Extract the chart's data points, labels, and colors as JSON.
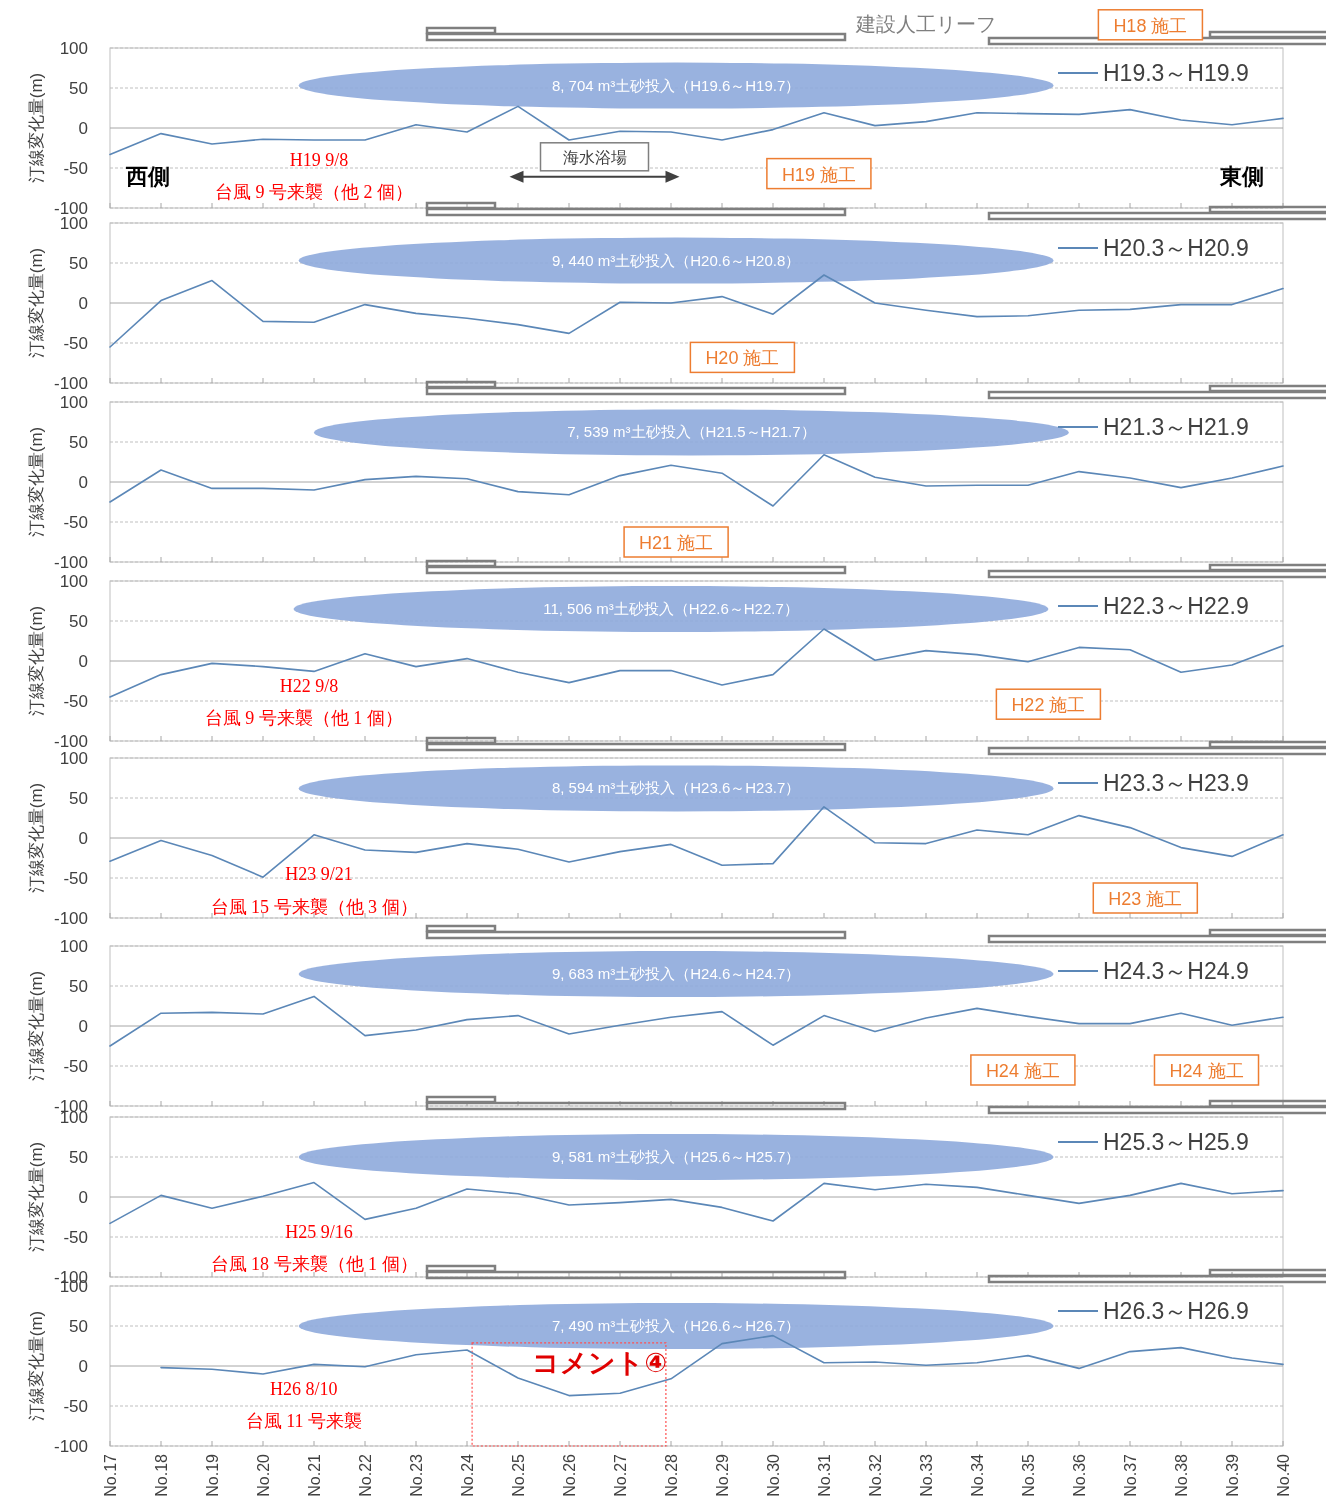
{
  "chart_data": [
    {
      "type": "line",
      "categories": [
        null,
        null,
        null,
        null,
        null,
        null,
        null,
        null,
        null,
        null,
        null,
        null,
        null,
        null,
        null,
        null,
        null,
        null,
        null,
        null,
        null,
        null,
        null,
        null
      ],
      "ylabel": "汀線変化量(m)",
      "ylim": [
        -100,
        100
      ],
      "yticks": [
        100,
        50,
        0,
        -50,
        -100
      ],
      "grid": "y",
      "legend": "top right",
      "tick_labels": "y",
      "series": [
        {
          "name": "H19.3～H19.9",
          "color": "#5b87b7",
          "values": [
            -33,
            -7,
            -20,
            -14,
            -15,
            -15,
            4,
            -5,
            27,
            -15,
            -4,
            -5,
            -15,
            -2,
            19,
            3,
            8,
            19,
            18,
            17,
            23,
            10,
            4,
            12
          ]
        }
      ],
      "annotations": [
        "建設人工リーフ",
        "H18 施工",
        "8, 704 m³土砂投入（H19.6～H19.7）",
        "H19 9/8",
        "台風 9 号来襲（他 2 個）",
        "海水浴場",
        "H19 施工",
        "西側",
        "東側"
      ]
    },
    {
      "type": "line",
      "categories": [
        null,
        null,
        null,
        null,
        null,
        null,
        null,
        null,
        null,
        null,
        null,
        null,
        null,
        null,
        null,
        null,
        null,
        null,
        null,
        null,
        null,
        null,
        null,
        null
      ],
      "ylabel": "汀線変化量(m)",
      "ylim": [
        -100,
        100
      ],
      "yticks": [
        100,
        50,
        0,
        -50,
        -100
      ],
      "grid": "y",
      "legend": "top right",
      "tick_labels": "y",
      "series": [
        {
          "name": "H20.3～H20.9",
          "color": "#5b87b7",
          "values": [
            -55,
            3,
            28,
            -23,
            -24,
            -2,
            -13,
            -19,
            -27,
            -38,
            1,
            0,
            8,
            -14,
            35,
            0,
            -9,
            -17,
            -16,
            -9,
            -8,
            -2,
            -2,
            18
          ]
        }
      ],
      "annotations": [
        "9, 440 m³土砂投入（H20.6～H20.8）",
        "H20 施工"
      ]
    },
    {
      "type": "line",
      "categories": [
        null,
        null,
        null,
        null,
        null,
        null,
        null,
        null,
        null,
        null,
        null,
        null,
        null,
        null,
        null,
        null,
        null,
        null,
        null,
        null,
        null,
        null,
        null,
        null
      ],
      "ylabel": "汀線変化量(m)",
      "ylim": [
        -100,
        100
      ],
      "yticks": [
        100,
        50,
        0,
        -50,
        -100
      ],
      "grid": "y",
      "legend": "top right",
      "tick_labels": "y",
      "series": [
        {
          "name": "H21.3～H21.9",
          "color": "#5b87b7",
          "values": [
            -25,
            15,
            -8,
            -8,
            -10,
            3,
            7,
            4,
            -12,
            -16,
            8,
            21,
            11,
            -30,
            34,
            6,
            -5,
            -4,
            -4,
            13,
            5,
            -7,
            5,
            20
          ]
        }
      ],
      "annotations": [
        "7, 539 m³土砂投入（H21.5～H21.7）",
        "H21 施工"
      ]
    },
    {
      "type": "line",
      "categories": [
        null,
        null,
        null,
        null,
        null,
        null,
        null,
        null,
        null,
        null,
        null,
        null,
        null,
        null,
        null,
        null,
        null,
        null,
        null,
        null,
        null,
        null,
        null,
        null
      ],
      "ylabel": "汀線変化量(m)",
      "ylim": [
        -100,
        100
      ],
      "yticks": [
        100,
        50,
        0,
        -50,
        -100
      ],
      "grid": "y",
      "legend": "top right",
      "tick_labels": "y",
      "series": [
        {
          "name": "H22.3～H22.9",
          "color": "#5b87b7",
          "values": [
            -45,
            -17,
            -3,
            -7,
            -13,
            9,
            -7,
            3,
            -14,
            -27,
            -12,
            -12,
            -30,
            -17,
            40,
            1,
            13,
            8,
            -1,
            17,
            14,
            -14,
            -5,
            19
          ]
        }
      ],
      "annotations": [
        "11, 506 m³土砂投入（H22.6～H22.7）",
        "H22 9/8",
        "台風 9 号来襲（他 1 個）",
        "H22 施工"
      ]
    },
    {
      "type": "line",
      "categories": [
        null,
        null,
        null,
        null,
        null,
        null,
        null,
        null,
        null,
        null,
        null,
        null,
        null,
        null,
        null,
        null,
        null,
        null,
        null,
        null,
        null,
        null,
        null,
        null
      ],
      "ylabel": "汀線変化量(m)",
      "ylim": [
        -100,
        100
      ],
      "yticks": [
        100,
        50,
        0,
        -50,
        -100
      ],
      "grid": "y",
      "legend": "top right",
      "tick_labels": "y",
      "series": [
        {
          "name": "H23.3～H23.9",
          "color": "#5b87b7",
          "values": [
            -29,
            -3,
            -22,
            -49,
            4,
            -15,
            -18,
            -7,
            -14,
            -30,
            -17,
            -8,
            -34,
            -32,
            39,
            -6,
            -7,
            10,
            4,
            28,
            13,
            -12,
            -23,
            4
          ]
        }
      ],
      "annotations": [
        "8, 594 m³土砂投入（H23.6～H23.7）",
        "H23 9/21",
        "台風 15 号来襲（他 3 個）",
        "H23 施工"
      ]
    },
    {
      "type": "line",
      "categories": [
        null,
        null,
        null,
        null,
        null,
        null,
        null,
        null,
        null,
        null,
        null,
        null,
        null,
        null,
        null,
        null,
        null,
        null,
        null,
        null,
        null,
        null,
        null,
        null
      ],
      "ylabel": "汀線変化量(m)",
      "ylim": [
        -100,
        100
      ],
      "yticks": [
        100,
        50,
        0,
        -50,
        -100
      ],
      "grid": "y",
      "legend": "top right",
      "tick_labels": "y",
      "series": [
        {
          "name": "H24.3～H24.9",
          "color": "#5b87b7",
          "values": [
            -25,
            16,
            17,
            15,
            37,
            -12,
            -5,
            8,
            13,
            -10,
            1,
            11,
            18,
            -24,
            13,
            -7,
            10,
            22,
            12,
            3,
            3,
            16,
            1,
            11
          ]
        }
      ],
      "annotations": [
        "9, 683 m³土砂投入（H24.6～H24.7）",
        "H24 施工",
        "H24 施工"
      ]
    },
    {
      "type": "line",
      "categories": [
        null,
        null,
        null,
        null,
        null,
        null,
        null,
        null,
        null,
        null,
        null,
        null,
        null,
        null,
        null,
        null,
        null,
        null,
        null,
        null,
        null,
        null,
        null,
        null
      ],
      "ylabel": "汀線変化量(m)",
      "ylim": [
        -100,
        100
      ],
      "yticks": [
        100,
        50,
        0,
        -50,
        -100
      ],
      "grid": "y",
      "legend": "top right",
      "tick_labels": "y",
      "series": [
        {
          "name": "H25.3～H25.9",
          "color": "#5b87b7",
          "values": [
            -33,
            2,
            -14,
            1,
            18,
            -28,
            -14,
            10,
            4,
            -10,
            -7,
            -3,
            -13,
            -30,
            17,
            9,
            16,
            12,
            2,
            -8,
            2,
            17,
            4,
            8
          ]
        }
      ],
      "annotations": [
        "9, 581 m³土砂投入（H25.6～H25.7）",
        "H25 9/16",
        "台風 18 号来襲（他 1 個）"
      ]
    },
    {
      "type": "line",
      "categories": [
        "No.17",
        "No.18",
        "No.19",
        "No.20",
        "No.21",
        "No.22",
        "No.23",
        "No.24",
        "No.25",
        "No.26",
        "No.27",
        "No.28",
        "No.29",
        "No.30",
        "No.31",
        "No.32",
        "No.33",
        "No.34",
        "No.35",
        "No.36",
        "No.37",
        "No.38",
        "No.39",
        "No.40"
      ],
      "ylabel": "汀線変化量(m)",
      "ylim": [
        -100,
        100
      ],
      "yticks": [
        100,
        50,
        0,
        -50,
        -100
      ],
      "grid": "y",
      "legend": "top right",
      "series": [
        {
          "name": "H26.3～H26.9",
          "color": "#5b87b7",
          "values": [
            null,
            -2,
            -4,
            -10,
            2,
            -1,
            14,
            20,
            -15,
            -37,
            -34,
            -16,
            28,
            38,
            4,
            5,
            1,
            4,
            13,
            -3,
            18,
            23,
            10,
            2
          ]
        }
      ],
      "annotations": [
        "7, 490 m³土砂投入（H26.6～H26.7）",
        "H26 8/10",
        "台風 11 号来襲",
        "コメント④"
      ]
    }
  ]
}
